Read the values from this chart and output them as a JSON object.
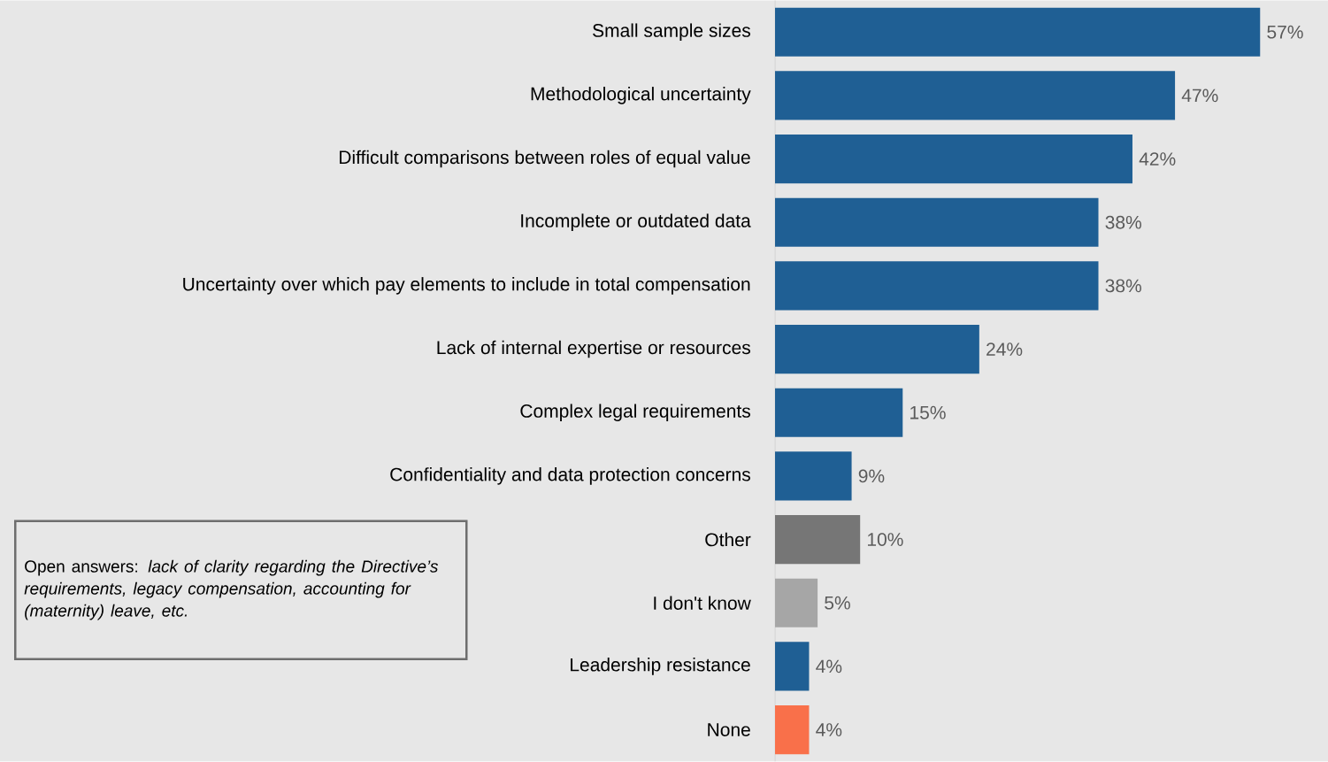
{
  "chart_data": {
    "type": "bar",
    "orientation": "horizontal",
    "categories": [
      "Small sample sizes",
      "Methodological uncertainty",
      "Difficult comparisons between roles of equal value",
      "Incomplete or outdated data",
      "Uncertainty over which pay elements to include in total compensation",
      "Lack of internal expertise or resources",
      "Complex legal requirements",
      "Confidentiality and data protection concerns",
      "Other",
      "I don't know",
      "Leadership resistance",
      "None"
    ],
    "values": [
      57,
      47,
      42,
      38,
      38,
      24,
      15,
      9,
      10,
      5,
      4,
      4
    ],
    "value_labels": [
      "57%",
      "47%",
      "42%",
      "38%",
      "38%",
      "24%",
      "15%",
      "9%",
      "10%",
      "5%",
      "4%",
      "4%"
    ],
    "colors": [
      "#1f5f94",
      "#1f5f94",
      "#1f5f94",
      "#1f5f94",
      "#1f5f94",
      "#1f5f94",
      "#1f5f94",
      "#1f5f94",
      "#767676",
      "#a6a6a6",
      "#1f5f94",
      "#f9704a"
    ],
    "annotations": [
      "Open answers: *lack of clarity regarding the Directive’s requirements, legacy compensation, accounting for (maternity) leave, etc.*"
    ]
  }
}
